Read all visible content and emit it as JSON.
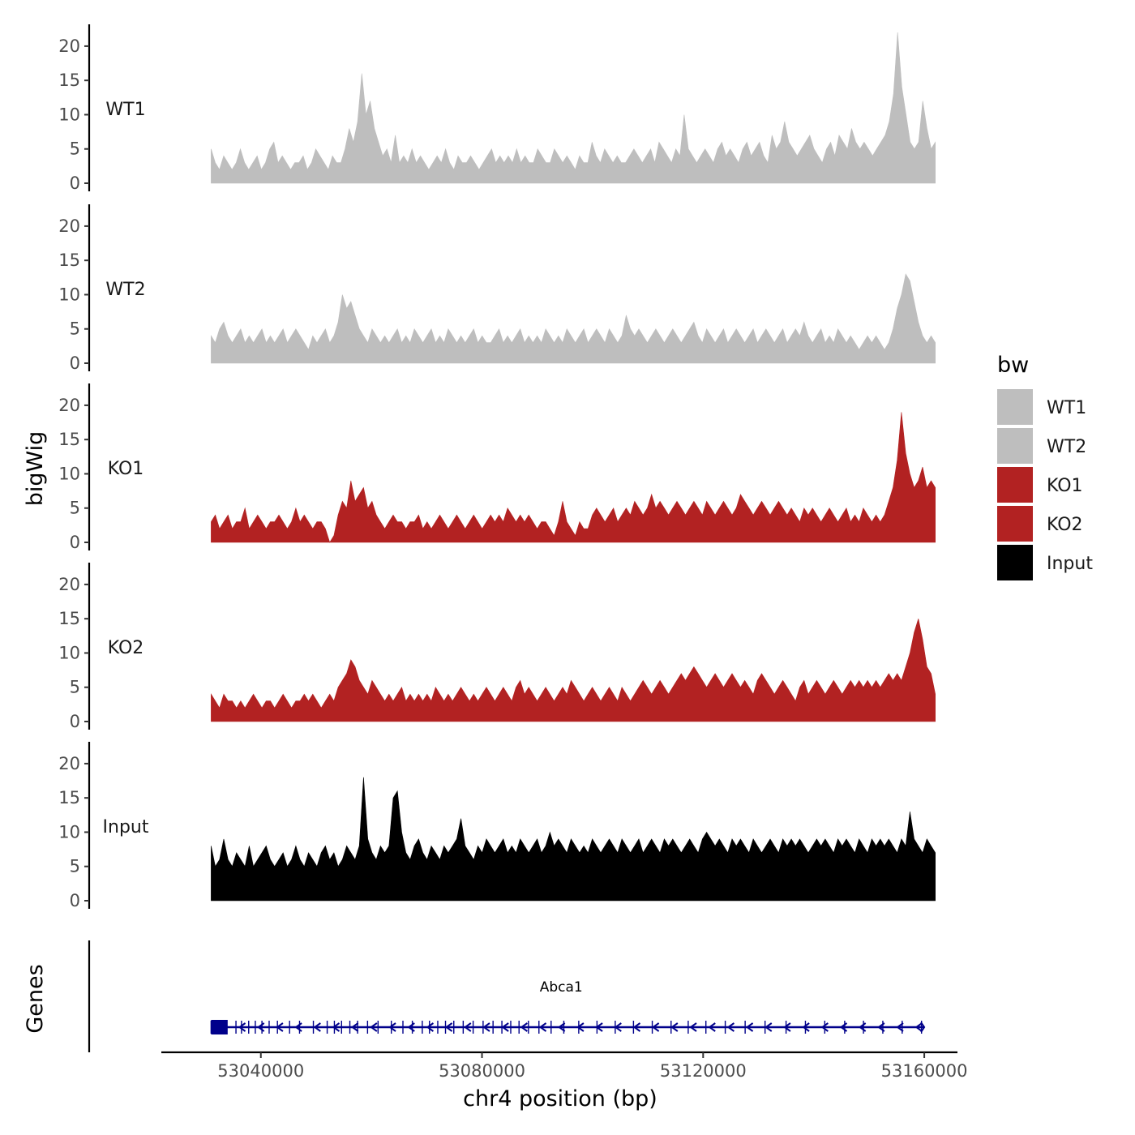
{
  "chart_data": {
    "type": "area",
    "ylabel": "bigWig",
    "xlabel": "chr4 position (bp)",
    "xlim": [
      53022000,
      53166000
    ],
    "data_range": [
      53031000,
      53162000
    ],
    "xticks": [
      53040000,
      53080000,
      53120000,
      53160000
    ],
    "xtick_labels": [
      "53040000",
      "53080000",
      "53120000",
      "53160000"
    ],
    "ylim": [
      0,
      22
    ],
    "yticks": [
      0,
      5,
      10,
      15,
      20
    ],
    "ytick_labels": [
      "0",
      "5",
      "10",
      "15",
      "20"
    ],
    "legend": {
      "title": "bw",
      "position": "right",
      "entries": [
        {
          "name": "WT1",
          "color": "#bebebe"
        },
        {
          "name": "WT2",
          "color": "#bebebe"
        },
        {
          "name": "KO1",
          "color": "#b22222"
        },
        {
          "name": "KO2",
          "color": "#b22222"
        },
        {
          "name": "Input",
          "color": "#000000"
        }
      ]
    },
    "series": [
      {
        "name": "WT1",
        "color": "#bebebe",
        "values": [
          5,
          3,
          2,
          4,
          3,
          2,
          3,
          5,
          3,
          2,
          3,
          4,
          2,
          3,
          5,
          6,
          3,
          4,
          3,
          2,
          3,
          3,
          4,
          2,
          3,
          5,
          4,
          3,
          2,
          4,
          3,
          3,
          5,
          8,
          6,
          9,
          16,
          10,
          12,
          8,
          6,
          4,
          5,
          3,
          7,
          3,
          4,
          3,
          5,
          3,
          4,
          3,
          2,
          3,
          4,
          3,
          5,
          3,
          2,
          4,
          3,
          3,
          4,
          3,
          2,
          3,
          4,
          5,
          3,
          4,
          3,
          4,
          3,
          5,
          3,
          4,
          3,
          3,
          5,
          4,
          3,
          3,
          5,
          4,
          3,
          4,
          3,
          2,
          4,
          3,
          3,
          6,
          4,
          3,
          5,
          4,
          3,
          4,
          3,
          3,
          4,
          5,
          4,
          3,
          4,
          5,
          3,
          6,
          5,
          4,
          3,
          5,
          4,
          10,
          5,
          4,
          3,
          4,
          5,
          4,
          3,
          5,
          6,
          4,
          5,
          4,
          3,
          5,
          6,
          4,
          5,
          6,
          4,
          3,
          7,
          5,
          6,
          9,
          6,
          5,
          4,
          5,
          6,
          7,
          5,
          4,
          3,
          5,
          6,
          4,
          7,
          6,
          5,
          8,
          6,
          5,
          6,
          5,
          4,
          5,
          6,
          7,
          9,
          13,
          22,
          14,
          10,
          6,
          5,
          6,
          12,
          8,
          5,
          6
        ]
      },
      {
        "name": "WT2",
        "color": "#bebebe",
        "values": [
          4,
          3,
          5,
          6,
          4,
          3,
          4,
          5,
          3,
          4,
          3,
          4,
          5,
          3,
          4,
          3,
          4,
          5,
          3,
          4,
          5,
          4,
          3,
          2,
          4,
          3,
          4,
          5,
          3,
          4,
          6,
          10,
          8,
          9,
          7,
          5,
          4,
          3,
          5,
          4,
          3,
          4,
          3,
          4,
          5,
          3,
          4,
          3,
          5,
          4,
          3,
          4,
          5,
          3,
          4,
          3,
          5,
          4,
          3,
          4,
          3,
          4,
          5,
          3,
          4,
          3,
          3,
          4,
          5,
          3,
          4,
          3,
          4,
          5,
          3,
          4,
          3,
          4,
          3,
          5,
          4,
          3,
          4,
          3,
          5,
          4,
          3,
          4,
          5,
          3,
          4,
          5,
          4,
          3,
          5,
          4,
          3,
          4,
          7,
          5,
          4,
          5,
          4,
          3,
          4,
          5,
          4,
          3,
          4,
          5,
          4,
          3,
          4,
          5,
          6,
          4,
          3,
          5,
          4,
          3,
          4,
          5,
          3,
          4,
          5,
          4,
          3,
          4,
          5,
          3,
          4,
          5,
          4,
          3,
          4,
          5,
          3,
          4,
          5,
          4,
          6,
          4,
          3,
          4,
          5,
          3,
          4,
          3,
          5,
          4,
          3,
          4,
          3,
          2,
          3,
          4,
          3,
          4,
          3,
          2,
          3,
          5,
          8,
          10,
          13,
          12,
          9,
          6,
          4,
          3,
          4,
          3
        ]
      },
      {
        "name": "KO1",
        "color": "#b22222",
        "values": [
          3,
          4,
          2,
          3,
          4,
          2,
          3,
          3,
          5,
          2,
          3,
          4,
          3,
          2,
          3,
          3,
          4,
          3,
          2,
          3,
          5,
          3,
          4,
          3,
          2,
          3,
          3,
          2,
          0,
          1,
          4,
          6,
          5,
          9,
          6,
          7,
          8,
          5,
          6,
          4,
          3,
          2,
          3,
          4,
          3,
          3,
          2,
          3,
          3,
          4,
          2,
          3,
          2,
          3,
          4,
          3,
          2,
          3,
          4,
          3,
          2,
          3,
          4,
          3,
          2,
          3,
          4,
          3,
          4,
          3,
          5,
          4,
          3,
          4,
          3,
          4,
          3,
          2,
          3,
          3,
          2,
          1,
          3,
          6,
          3,
          2,
          1,
          3,
          2,
          2,
          4,
          5,
          4,
          3,
          4,
          5,
          3,
          4,
          5,
          4,
          6,
          5,
          4,
          5,
          7,
          5,
          6,
          5,
          4,
          5,
          6,
          5,
          4,
          5,
          6,
          5,
          4,
          6,
          5,
          4,
          5,
          6,
          5,
          4,
          5,
          7,
          6,
          5,
          4,
          5,
          6,
          5,
          4,
          5,
          6,
          5,
          4,
          5,
          4,
          3,
          5,
          4,
          5,
          4,
          3,
          4,
          5,
          4,
          3,
          4,
          5,
          3,
          4,
          3,
          5,
          4,
          3,
          4,
          3,
          4,
          6,
          8,
          12,
          19,
          13,
          10,
          8,
          9,
          11,
          8,
          9,
          8
        ]
      },
      {
        "name": "KO2",
        "color": "#b22222",
        "values": [
          4,
          3,
          2,
          4,
          3,
          3,
          2,
          3,
          2,
          3,
          4,
          3,
          2,
          3,
          3,
          2,
          3,
          4,
          3,
          2,
          3,
          3,
          4,
          3,
          4,
          3,
          2,
          3,
          4,
          3,
          5,
          6,
          7,
          9,
          8,
          6,
          5,
          4,
          6,
          5,
          4,
          3,
          4,
          3,
          4,
          5,
          3,
          4,
          3,
          4,
          3,
          4,
          3,
          5,
          4,
          3,
          4,
          3,
          4,
          5,
          4,
          3,
          4,
          3,
          4,
          5,
          4,
          3,
          4,
          5,
          4,
          3,
          5,
          6,
          4,
          5,
          4,
          3,
          4,
          5,
          4,
          3,
          4,
          5,
          4,
          6,
          5,
          4,
          3,
          4,
          5,
          4,
          3,
          4,
          5,
          4,
          3,
          5,
          4,
          3,
          4,
          5,
          6,
          5,
          4,
          5,
          6,
          5,
          4,
          5,
          6,
          7,
          6,
          7,
          8,
          7,
          6,
          5,
          6,
          7,
          6,
          5,
          6,
          7,
          6,
          5,
          6,
          5,
          4,
          6,
          7,
          6,
          5,
          4,
          5,
          6,
          5,
          4,
          3,
          5,
          6,
          4,
          5,
          6,
          5,
          4,
          5,
          6,
          5,
          4,
          5,
          6,
          5,
          6,
          5,
          6,
          5,
          6,
          5,
          6,
          7,
          6,
          7,
          6,
          8,
          10,
          13,
          15,
          12,
          8,
          7,
          4
        ]
      },
      {
        "name": "Input",
        "color": "#000000",
        "values": [
          8,
          5,
          6,
          9,
          6,
          5,
          7,
          6,
          5,
          8,
          5,
          6,
          7,
          8,
          6,
          5,
          6,
          7,
          5,
          6,
          8,
          6,
          5,
          7,
          6,
          5,
          7,
          8,
          6,
          7,
          5,
          6,
          8,
          7,
          6,
          8,
          18,
          9,
          7,
          6,
          8,
          7,
          8,
          15,
          16,
          10,
          7,
          6,
          8,
          9,
          7,
          6,
          8,
          7,
          6,
          8,
          7,
          8,
          9,
          12,
          8,
          7,
          6,
          8,
          7,
          9,
          8,
          7,
          8,
          9,
          7,
          8,
          7,
          9,
          8,
          7,
          8,
          9,
          7,
          8,
          10,
          8,
          9,
          8,
          7,
          9,
          8,
          7,
          8,
          7,
          9,
          8,
          7,
          8,
          9,
          8,
          7,
          9,
          8,
          7,
          8,
          9,
          7,
          8,
          9,
          8,
          7,
          9,
          8,
          9,
          8,
          7,
          8,
          9,
          8,
          7,
          9,
          10,
          9,
          8,
          9,
          8,
          7,
          9,
          8,
          9,
          8,
          7,
          9,
          8,
          7,
          8,
          9,
          8,
          7,
          9,
          8,
          9,
          8,
          9,
          8,
          7,
          8,
          9,
          8,
          9,
          8,
          7,
          9,
          8,
          9,
          8,
          7,
          9,
          8,
          7,
          9,
          8,
          9,
          8,
          9,
          8,
          7,
          9,
          8,
          13,
          9,
          8,
          7,
          9,
          8,
          7
        ]
      }
    ],
    "gene_track": {
      "label": "Genes",
      "gene_name": "Abca1",
      "color": "#00008b",
      "start": 53031000,
      "end": 53160000,
      "strand": "-",
      "exons": [
        53031000,
        53033000,
        53035500,
        53036500,
        53037800,
        53039000,
        53040200,
        53041500,
        53043000,
        53045200,
        53047000,
        53049500,
        53052000,
        53053300,
        53054600,
        53056100,
        53057500,
        53059300,
        53061200,
        53063600,
        53065700,
        53067400,
        53069200,
        53070500,
        53072000,
        53073400,
        53074900,
        53076600,
        53078400,
        53080200,
        53082000,
        53083600,
        53085200,
        53086700,
        53088400,
        53090300,
        53092500,
        53094800,
        53097500,
        53100800,
        53104100,
        53107400,
        53110800,
        53114200,
        53117300,
        53120500,
        53124000,
        53127600,
        53131200,
        53135000,
        53138500,
        53142000,
        53145600,
        53149000,
        53152500,
        53156000,
        53159500
      ]
    }
  }
}
